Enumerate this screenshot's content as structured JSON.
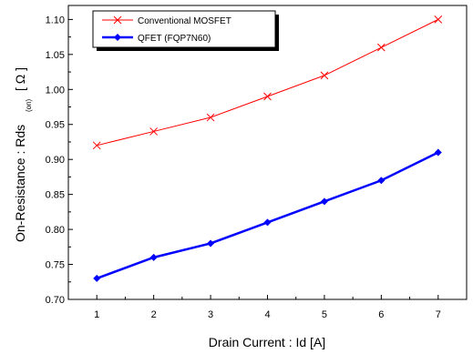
{
  "chart_data": {
    "type": "line",
    "title": "",
    "xlabel": "Drain Current  :  Id [A]",
    "ylabel": {
      "main": "On-Resistance : Rds",
      "subscript": "(on)",
      "unit": "[ Ω ]"
    },
    "x": [
      1,
      2,
      3,
      4,
      5,
      6,
      7
    ],
    "xlim": [
      0.5,
      7.5
    ],
    "ylim": [
      0.7,
      1.12
    ],
    "xticks": [
      "1",
      "2",
      "3",
      "4",
      "5",
      "6",
      "7"
    ],
    "yticks": [
      "0.70",
      "0.75",
      "0.80",
      "0.85",
      "0.90",
      "0.95",
      "1.00",
      "1.05",
      "1.10"
    ],
    "grid": false,
    "legend_position": "top-left",
    "series": [
      {
        "name": "Conventional MOSFET",
        "color": "#ff0000",
        "marker": "x",
        "values": [
          0.92,
          0.94,
          0.96,
          0.99,
          1.02,
          1.06,
          1.1
        ]
      },
      {
        "name": "QFET (FQP7N60)",
        "color": "#0000ff",
        "marker": "diamond",
        "values": [
          0.73,
          0.76,
          0.78,
          0.81,
          0.84,
          0.87,
          0.91
        ]
      }
    ]
  }
}
